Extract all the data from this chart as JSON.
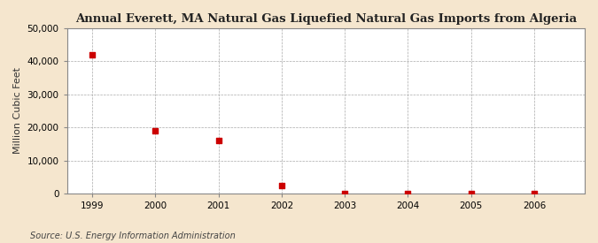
{
  "title": "Annual Everett, MA Natural Gas Liquefied Natural Gas Imports from Algeria",
  "ylabel": "Million Cubic Feet",
  "source": "Source: U.S. Energy Information Administration",
  "figure_bg": "#f5e6ce",
  "axes_bg": "#ffffff",
  "years": [
    1999,
    2000,
    2001,
    2002,
    2003,
    2004,
    2005,
    2006
  ],
  "values": [
    42000,
    19000,
    16000,
    2500,
    50,
    100,
    80,
    50
  ],
  "marker_color": "#cc0000",
  "marker_size": 4,
  "xlim": [
    1998.6,
    2006.8
  ],
  "ylim": [
    0,
    50000
  ],
  "yticks": [
    0,
    10000,
    20000,
    30000,
    40000,
    50000
  ],
  "xticks": [
    1999,
    2000,
    2001,
    2002,
    2003,
    2004,
    2005,
    2006
  ],
  "xticklabels": [
    "1999",
    "2000",
    "2001",
    "2002",
    "2003",
    "2004",
    "2005",
    "2006"
  ],
  "grid_color": "#aaaaaa",
  "grid_style": "--",
  "title_fontsize": 9.5,
  "ylabel_fontsize": 8,
  "tick_fontsize": 7.5,
  "source_fontsize": 7,
  "spine_color": "#888888"
}
